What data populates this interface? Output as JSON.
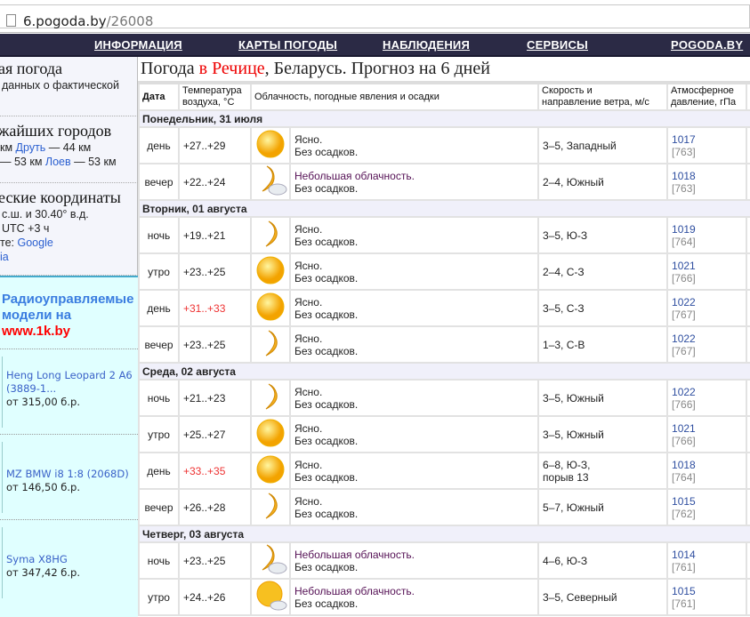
{
  "browser": {
    "url_host": "6.pogoda.by",
    "url_path": "/26008"
  },
  "nav": [
    "ИНФОРМАЦИЯ",
    "КАРТЫ ПОГОДЫ",
    "НАБЛЮДЕНИЯ",
    "СЕРВИСЫ",
    "POGODA.BY"
  ],
  "sidebar": {
    "s1": {
      "title": "ая погода",
      "text": "данных о фактической"
    },
    "s2": {
      "title": "жайших городов",
      "l1a": "км ",
      "l1link": "Друть",
      "l1b": " — 44 км",
      "l2a": "53 км ",
      "l2link": "Лоев",
      "l2b": " — 53 км"
    },
    "s3": {
      "title": "еские координаты",
      "l1": "с.ш. и 30.40° в.д.",
      "l2": "UTC +3 ч",
      "l3a": "те: ",
      "l3link": "Google",
      "l4link": "ia"
    },
    "ad": {
      "title": "Радиоуправляемые модели на",
      "site": "www.1k.by",
      "items": [
        {
          "name": "Heng Long Leopard 2 A6 (3889-1...",
          "price": "от 315,00 б.р."
        },
        {
          "name": "MZ BMW i8 1:8 (2068D)",
          "price": "от 146,50 б.р."
        },
        {
          "name": "Syma X8HG",
          "price": "от 347,42 б.р."
        }
      ]
    }
  },
  "main": {
    "title_a": "Погода ",
    "title_city": "в Речице",
    "title_b": ", Беларусь. Прогноз на 6 дней",
    "headers": [
      "Дата",
      "Температура воздуха, °С",
      "Облачность, погодные явления и осадки",
      "Скорость и направление ветра, м/с",
      "Атмосферное давление, гПа",
      ""
    ],
    "days": [
      {
        "label": "Понедельник, 31 июля",
        "rows": [
          {
            "period": "день",
            "temp": "+27..+29",
            "hot": false,
            "icon": "sun",
            "sky": "Ясно.",
            "precip": "Без осадков.",
            "wind": "3–5, Западный",
            "p": "1017",
            "mm": "[763]",
            "x": "5"
          },
          {
            "period": "вечер",
            "temp": "+22..+24",
            "hot": false,
            "icon": "moon-cloud",
            "sky": "Небольшая облачность.",
            "precip": "Без осадков.",
            "wind": "2–4, Южный",
            "p": "1018",
            "mm": "[763]",
            "x": "8"
          }
        ]
      },
      {
        "label": "Вторник, 01 августа",
        "rows": [
          {
            "period": "ночь",
            "temp": "+19..+21",
            "hot": false,
            "icon": "moon",
            "sky": "Ясно.",
            "precip": "Без осадков.",
            "wind": "3–5, Ю-З",
            "p": "1019",
            "mm": "[764]",
            "x": "8"
          },
          {
            "period": "утро",
            "temp": "+23..+25",
            "hot": false,
            "icon": "sun",
            "sky": "Ясно.",
            "precip": "Без осадков.",
            "wind": "2–4, С-З",
            "p": "1021",
            "mm": "[766]",
            "x": "8"
          },
          {
            "period": "день",
            "temp": "+31..+33",
            "hot": true,
            "icon": "sun",
            "sky": "Ясно.",
            "precip": "Без осадков.",
            "wind": "3–5, С-З",
            "p": "1022",
            "mm": "[767]",
            "x": "4"
          },
          {
            "period": "вечер",
            "temp": "+23..+25",
            "hot": false,
            "icon": "moon",
            "sky": "Ясно.",
            "precip": "Без осадков.",
            "wind": "1–3, С-В",
            "p": "1022",
            "mm": "[767]",
            "x": "9"
          }
        ]
      },
      {
        "label": "Среда, 02 августа",
        "rows": [
          {
            "period": "ночь",
            "temp": "+21..+23",
            "hot": false,
            "icon": "moon",
            "sky": "Ясно.",
            "precip": "Без осадков.",
            "wind": "3–5, Южный",
            "p": "1022",
            "mm": "[766]",
            "x": "8"
          },
          {
            "period": "утро",
            "temp": "+25..+27",
            "hot": false,
            "icon": "sun",
            "sky": "Ясно.",
            "precip": "Без осадков.",
            "wind": "3–5, Южный",
            "p": "1021",
            "mm": "[766]",
            "x": "7"
          },
          {
            "period": "день",
            "temp": "+33..+35",
            "hot": true,
            "icon": "sun",
            "sky": "Ясно.",
            "precip": "Без осадков.",
            "wind": "6–8, Ю-З,",
            "wind2": "порыв 13",
            "p": "1018",
            "mm": "[764]",
            "x": "4"
          },
          {
            "period": "вечер",
            "temp": "+26..+28",
            "hot": false,
            "icon": "moon",
            "sky": "Ясно.",
            "precip": "Без осадков.",
            "wind": "5–7, Южный",
            "p": "1015",
            "mm": "[762]",
            "x": "5"
          }
        ]
      },
      {
        "label": "Четверг, 03 августа",
        "rows": [
          {
            "period": "ночь",
            "temp": "+23..+25",
            "hot": false,
            "icon": "moon-cloud",
            "sky": "Небольшая облачность.",
            "precip": "Без осадков.",
            "wind": "4–6, Ю-З",
            "p": "1014",
            "mm": "[761]",
            "x": "7"
          },
          {
            "period": "утро",
            "temp": "+24..+26",
            "hot": false,
            "icon": "sun-cloud",
            "sky": "Небольшая облачность.",
            "precip": "Без осадков.",
            "wind": "3–5, Северный",
            "p": "1015",
            "mm": "[761]",
            "x": "8"
          }
        ]
      }
    ]
  },
  "colors": {
    "nav_bg": "#2b2a45",
    "city": "#ee0000",
    "hot_temp": "#ee3333",
    "link": "#2a5fd0",
    "ad_bg": "#e0ffff"
  }
}
